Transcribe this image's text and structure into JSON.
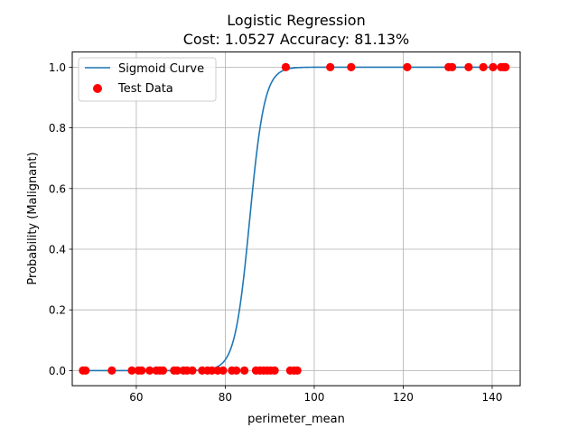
{
  "chart_data": {
    "type": "scatter",
    "title_line1": "Logistic Regression",
    "title_line2": "Cost: 1.0527 Accuracy: 81.13%",
    "xlabel": "perimeter_mean",
    "ylabel": "Probability (Malignant)",
    "xlim": [
      45.6,
      146.3
    ],
    "ylim": [
      -0.05,
      1.05
    ],
    "xticks": [
      60,
      80,
      100,
      120,
      140
    ],
    "yticks": [
      0.0,
      0.2,
      0.4,
      0.6,
      0.8,
      1.0
    ],
    "grid": true,
    "legend_position": "top-left",
    "sigmoid": {
      "name": "Sigmoid Curve",
      "color": "#1f77b4",
      "x_range": [
        48,
        143
      ],
      "midpoint": 85.5,
      "slope": 0.6
    },
    "test_data": {
      "name": "Test Data",
      "color": "#ff0000",
      "points": [
        [
          48.0,
          0
        ],
        [
          48.6,
          0
        ],
        [
          54.5,
          0
        ],
        [
          59.0,
          0
        ],
        [
          60.5,
          0
        ],
        [
          61.2,
          0
        ],
        [
          63.0,
          0
        ],
        [
          64.5,
          0
        ],
        [
          65.3,
          0
        ],
        [
          66.0,
          0
        ],
        [
          68.5,
          0
        ],
        [
          69.2,
          0
        ],
        [
          70.6,
          0
        ],
        [
          71.4,
          0
        ],
        [
          72.6,
          0
        ],
        [
          74.8,
          0
        ],
        [
          76.0,
          0
        ],
        [
          77.0,
          0
        ],
        [
          78.3,
          0
        ],
        [
          79.5,
          0
        ],
        [
          81.5,
          0
        ],
        [
          82.5,
          0
        ],
        [
          84.3,
          0
        ],
        [
          86.9,
          0
        ],
        [
          87.8,
          0
        ],
        [
          88.6,
          0
        ],
        [
          89.4,
          0
        ],
        [
          90.2,
          0
        ],
        [
          91.1,
          0
        ],
        [
          94.6,
          0
        ],
        [
          95.5,
          0
        ],
        [
          96.2,
          0
        ],
        [
          93.6,
          1
        ],
        [
          103.6,
          1
        ],
        [
          108.3,
          1
        ],
        [
          120.9,
          1
        ],
        [
          130.2,
          1
        ],
        [
          131.0,
          1
        ],
        [
          134.7,
          1
        ],
        [
          138.0,
          1
        ],
        [
          140.2,
          1
        ],
        [
          142.0,
          1
        ],
        [
          142.6,
          1
        ],
        [
          143.0,
          1
        ]
      ]
    }
  }
}
